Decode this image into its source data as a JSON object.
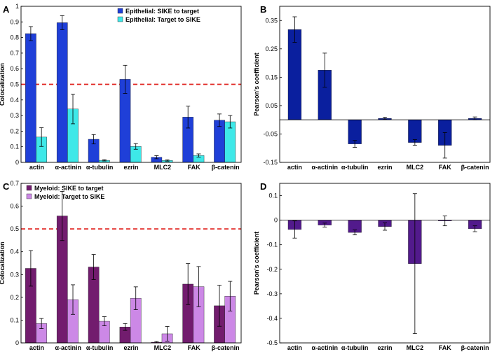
{
  "chart_data": [
    {
      "panel": "A",
      "type": "bar",
      "ylabel": "Colocalization",
      "ylim": [
        0,
        1
      ],
      "yticks": [
        0,
        0.1,
        0.2,
        0.3,
        0.4,
        0.5,
        0.6,
        0.7,
        0.8,
        0.9,
        1
      ],
      "threshold": 0.5,
      "legend_position": "top-right",
      "categories": [
        "actin",
        "α-actinin",
        "α-tubulin",
        "ezrin",
        "MLC2",
        "FAK",
        "β-catenin"
      ],
      "series": [
        {
          "name": "Epithelial: SIKE to target",
          "color": "#1f3fd8",
          "values": [
            0.825,
            0.895,
            0.148,
            0.532,
            0.033,
            0.29,
            0.27
          ],
          "errors": [
            0.045,
            0.045,
            0.03,
            0.09,
            0.01,
            0.07,
            0.04
          ]
        },
        {
          "name": "Epithelial: Target to SIKE",
          "color": "#3ee8e8",
          "values": [
            0.162,
            0.342,
            0.013,
            0.102,
            0.012,
            0.044,
            0.26
          ],
          "errors": [
            0.06,
            0.095,
            0.004,
            0.018,
            0.004,
            0.01,
            0.04
          ]
        }
      ]
    },
    {
      "panel": "B",
      "type": "bar",
      "ylabel": "Pearson's coefficient",
      "ylim": [
        -0.15,
        0.4
      ],
      "yticks": [
        -0.15,
        -0.05,
        0.05,
        0.15,
        0.25,
        0.35
      ],
      "categories": [
        "actin",
        "α-actinin",
        "α-tubulin",
        "ezrin",
        "MLC2",
        "FAK",
        "β-catenin"
      ],
      "series": [
        {
          "color": "#0a1f9e",
          "values": [
            0.318,
            0.175,
            -0.085,
            0.005,
            -0.08,
            -0.09,
            0.005
          ],
          "errors": [
            0.045,
            0.06,
            0.012,
            0.004,
            0.01,
            0.045,
            0.005
          ]
        }
      ]
    },
    {
      "panel": "C",
      "type": "bar",
      "ylabel": "Colocalization",
      "ylim": [
        0,
        0.7
      ],
      "yticks": [
        0,
        0.1,
        0.2,
        0.3,
        0.4,
        0.5,
        0.6,
        0.7
      ],
      "threshold": 0.5,
      "legend_position": "top-left",
      "categories": [
        "actin",
        "α-actinin",
        "α-tubulin",
        "ezrin",
        "MLC2",
        "FAK",
        "β-catenin"
      ],
      "series": [
        {
          "name": "Myeloid: SIKE to target",
          "color": "#721c6e",
          "values": [
            0.327,
            0.557,
            0.333,
            0.07,
            0.003,
            0.258,
            0.163
          ],
          "errors": [
            0.078,
            0.108,
            0.055,
            0.015,
            0.003,
            0.09,
            0.09
          ]
        },
        {
          "name": "Myeloid: Target to SIKE",
          "color": "#cc88e6",
          "values": [
            0.085,
            0.19,
            0.095,
            0.196,
            0.04,
            0.247,
            0.205
          ],
          "errors": [
            0.022,
            0.065,
            0.02,
            0.05,
            0.032,
            0.088,
            0.065
          ]
        }
      ]
    },
    {
      "panel": "D",
      "type": "bar",
      "ylabel": "Pearson's coefficient",
      "ylim": [
        -0.5,
        0.15
      ],
      "yticks": [
        -0.5,
        -0.4,
        -0.3,
        -0.2,
        -0.1,
        0,
        0.1
      ],
      "categories": [
        "actin",
        "α-actinin",
        "α-tubulin",
        "ezrin",
        "MLC2",
        "FAK",
        "β-catenin"
      ],
      "series": [
        {
          "color": "#521a8c",
          "values": [
            -0.038,
            -0.02,
            -0.05,
            -0.026,
            -0.177,
            -0.003,
            -0.035
          ],
          "errors": [
            0.035,
            0.008,
            0.01,
            0.015,
            0.285,
            0.02,
            0.012
          ]
        }
      ]
    }
  ]
}
